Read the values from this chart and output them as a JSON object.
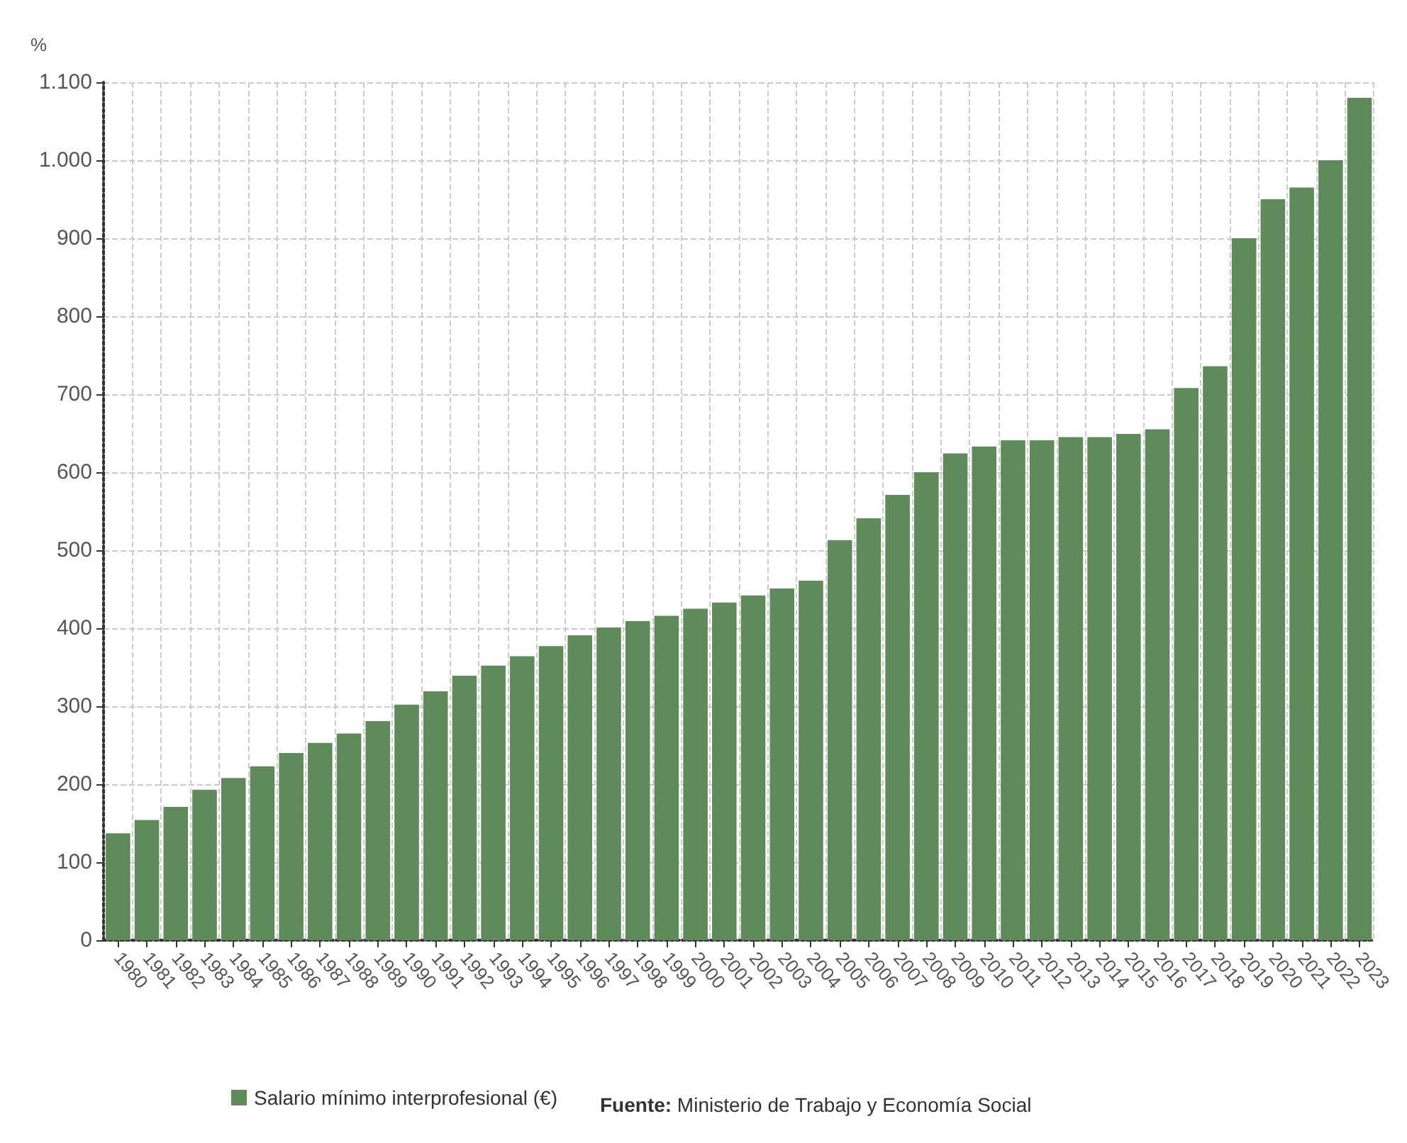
{
  "chart_data": {
    "type": "bar",
    "ylabel": "%",
    "categories": [
      "1980",
      "1981",
      "1982",
      "1983",
      "1984",
      "1985",
      "1986",
      "1987",
      "1988",
      "1989",
      "1990",
      "1991",
      "1992",
      "1993",
      "1994",
      "1995",
      "1996",
      "1997",
      "1998",
      "1999",
      "2000",
      "2001",
      "2002",
      "2003",
      "2004",
      "2005",
      "2006",
      "2007",
      "2008",
      "2009",
      "2010",
      "2011",
      "2012",
      "2013",
      "2014",
      "2015",
      "2016",
      "2017",
      "2018",
      "2019",
      "2020",
      "2021",
      "2022",
      "2023"
    ],
    "series": [
      {
        "name": "Salario mínimo interprofesional (€)",
        "color": "#5f8a5a",
        "values": [
          137,
          154,
          171,
          193,
          208,
          223,
          240,
          253,
          265,
          281,
          302,
          319,
          339,
          352,
          364,
          377,
          391,
          401,
          409,
          416,
          425,
          433,
          442,
          451,
          461,
          513,
          541,
          571,
          600,
          624,
          633,
          641,
          641,
          645,
          645,
          649,
          655,
          708,
          736,
          900,
          950,
          965,
          1000,
          1080
        ]
      }
    ],
    "ylim": [
      0,
      1100
    ],
    "yticks": [
      0,
      100,
      200,
      300,
      400,
      500,
      600,
      700,
      800,
      900,
      {
        "value": 1000,
        "label": "1.000"
      },
      {
        "value": 1100,
        "label": "1.100"
      }
    ],
    "grid": true,
    "legend": "bottom",
    "annotations": [
      "Fuente: Ministerio de Trabajo y Economía Social"
    ]
  }
}
